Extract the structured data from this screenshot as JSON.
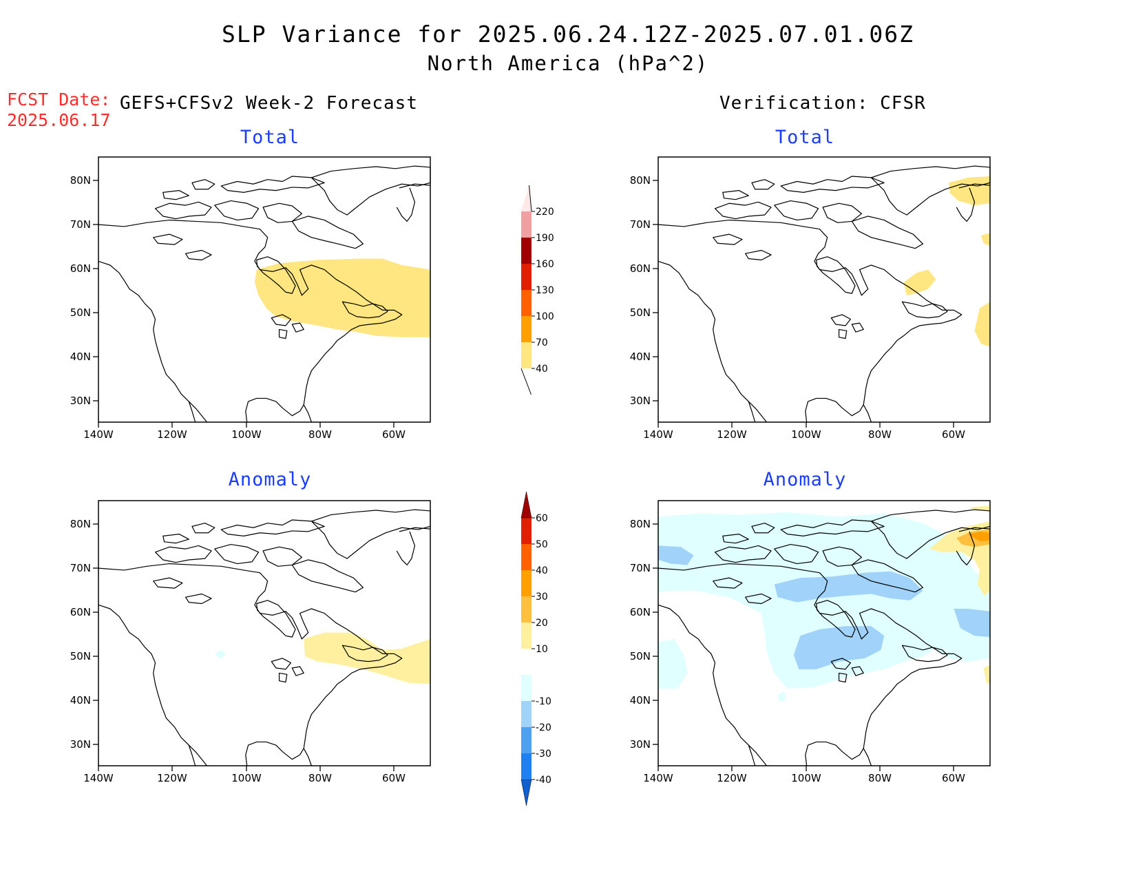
{
  "header": {
    "title": "SLP Variance for 2025.06.24.12Z-2025.07.01.06Z",
    "subtitle": "North America (hPa^2)",
    "fcst_date_label": "FCST Date:",
    "fcst_date_value": "2025.06.17",
    "left_column_title": "GEFS+CFSv2 Week-2 Forecast",
    "right_column_title": "Verification: CFSR"
  },
  "panels": [
    {
      "id": "forecast-total",
      "subtitle": "Total"
    },
    {
      "id": "verification-total",
      "subtitle": "Total"
    },
    {
      "id": "forecast-anomaly",
      "subtitle": "Anomaly"
    },
    {
      "id": "verification-anomaly",
      "subtitle": "Anomaly"
    }
  ],
  "axes": {
    "lon_ticks": [
      "140W",
      "120W",
      "100W",
      "80W",
      "60W"
    ],
    "lat_ticks": [
      "80N",
      "70N",
      "60N",
      "50N",
      "40N",
      "30N"
    ]
  },
  "colorbar_total": {
    "levels": [
      "40",
      "70",
      "100",
      "130",
      "160",
      "190",
      "220"
    ],
    "colors": [
      "#ffe680",
      "#ffa000",
      "#ff6000",
      "#e02000",
      "#a00000",
      "#f0a0a0",
      "#ffe8e8"
    ]
  },
  "colorbar_anomaly": {
    "levels": [
      "-40",
      "-30",
      "-20",
      "-10",
      "10",
      "20",
      "30",
      "40",
      "50",
      "60"
    ],
    "colors": [
      "#1060d0",
      "#2080f0",
      "#50a0f0",
      "#a0d2fa",
      "#e0ffff",
      "#ffffff",
      "#fff0a0",
      "#ffc040",
      "#ffa000",
      "#ff6000",
      "#e02000",
      "#a00000"
    ]
  },
  "colors": {
    "title_text": "#000000",
    "fcst_date_text": "#ff2a2a",
    "panel_subtitle_text": "#1a3cff"
  }
}
